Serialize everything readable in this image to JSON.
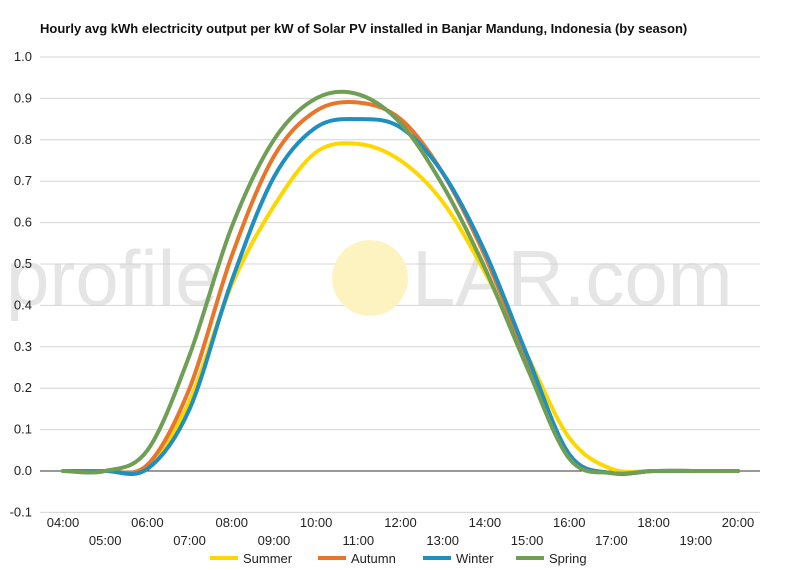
{
  "chart_data": {
    "type": "line",
    "title": "Hourly avg kWh electricity output per kW of Solar PV installed in Banjar Mandung, Indonesia (by season)",
    "xlabel": "",
    "ylabel": "",
    "x": [
      "04:00",
      "05:00",
      "06:00",
      "07:00",
      "08:00",
      "09:00",
      "10:00",
      "11:00",
      "12:00",
      "13:00",
      "14:00",
      "15:00",
      "16:00",
      "17:00",
      "18:00",
      "19:00",
      "20:00"
    ],
    "ylim": [
      -0.1,
      1.0
    ],
    "yticks": [
      "-0.1",
      "0.0",
      "0.1",
      "0.2",
      "0.3",
      "0.4",
      "0.5",
      "0.6",
      "0.7",
      "0.8",
      "0.9",
      "1.0"
    ],
    "grid": true,
    "legend_position": "bottom",
    "series": [
      {
        "name": "Summer",
        "color": "#ffd700",
        "values": [
          0,
          0,
          0.01,
          0.17,
          0.45,
          0.64,
          0.77,
          0.79,
          0.75,
          0.65,
          0.48,
          0.28,
          0.08,
          0.005,
          0,
          0,
          0
        ]
      },
      {
        "name": "Autumn",
        "color": "#e8752a",
        "values": [
          0,
          0,
          0.015,
          0.2,
          0.52,
          0.76,
          0.87,
          0.89,
          0.85,
          0.72,
          0.52,
          0.27,
          0.04,
          -0.005,
          0,
          0,
          0
        ]
      },
      {
        "name": "Winter",
        "color": "#1f8fc0",
        "values": [
          0,
          0,
          0.005,
          0.15,
          0.46,
          0.71,
          0.83,
          0.85,
          0.83,
          0.72,
          0.53,
          0.28,
          0.04,
          -0.005,
          0,
          0,
          0
        ]
      },
      {
        "name": "Spring",
        "color": "#6f9f55",
        "values": [
          0,
          0,
          0.05,
          0.28,
          0.59,
          0.8,
          0.9,
          0.91,
          0.84,
          0.69,
          0.49,
          0.25,
          0.03,
          -0.005,
          0,
          0,
          0
        ]
      }
    ]
  },
  "watermark": {
    "left": "profile",
    "right": "LAR.com",
    "sun_color": "#fdf3c0"
  }
}
